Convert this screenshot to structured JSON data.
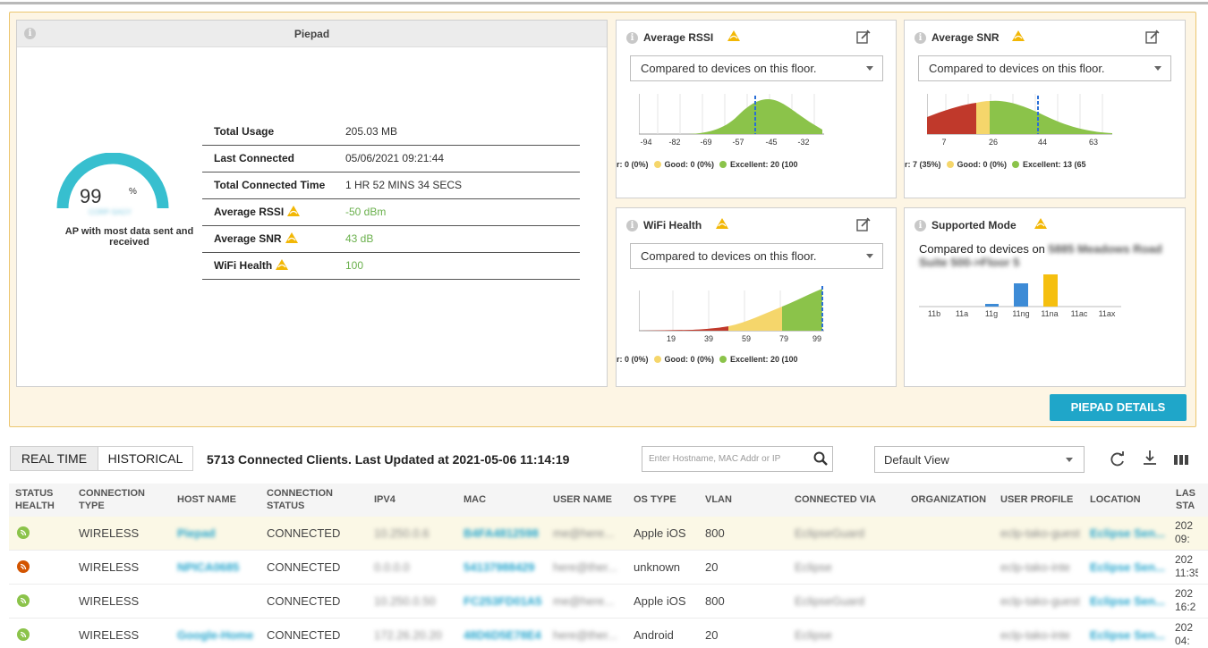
{
  "ap_card": {
    "title": "Piepad",
    "gauge_value": "99",
    "gauge_unit": "%",
    "gauge_fill": 0.99,
    "gauge_sub": "CORP-SAGY",
    "gauge_caption": "AP with most data sent and received",
    "rows": [
      {
        "label": "Total Usage",
        "value": "205.03 MB",
        "warn": false,
        "good": false
      },
      {
        "label": "Last Connected",
        "value": "05/06/2021 09:21:44",
        "warn": false,
        "good": false
      },
      {
        "label": "Total Connected Time",
        "value": "1 HR 52 MINS 34 SECS",
        "warn": false,
        "good": false
      },
      {
        "label": "Average RSSI",
        "value": "-50 dBm",
        "warn": true,
        "good": true
      },
      {
        "label": "Average SNR",
        "value": "43 dB",
        "warn": true,
        "good": true
      },
      {
        "label": "WiFi Health",
        "value": "100",
        "warn": true,
        "good": true
      }
    ]
  },
  "rssi_card": {
    "title": "Average RSSI",
    "dropdown": "Compared to devices on this floor.",
    "ticks": [
      "-94",
      "-82",
      "-69",
      "-57",
      "-45",
      "-32"
    ],
    "legend_poor": "r: 0 (0%)",
    "legend_good": "Good: 0 (0%)",
    "legend_excellent": "Excellent: 20 (100"
  },
  "snr_card": {
    "title": "Average SNR",
    "dropdown": "Compared to devices on this floor.",
    "ticks": [
      "7",
      "26",
      "44",
      "63"
    ],
    "legend_poor": "r: 7 (35%)",
    "legend_good": "Good: 0 (0%)",
    "legend_excellent": "Excellent: 13 (65"
  },
  "health_card": {
    "title": "WiFi Health",
    "dropdown": "Compared to devices on this floor.",
    "ticks": [
      "19",
      "39",
      "59",
      "79",
      "99"
    ],
    "legend_poor": "r: 0 (0%)",
    "legend_good": "Good: 0 (0%)",
    "legend_excellent": "Excellent: 20 (100"
  },
  "mode_card": {
    "title": "Supported Mode",
    "compare_prefix": "Compared to devices on",
    "compare_location": "5885 Meadows Road Suite 500->Floor 5",
    "modes": [
      "11b",
      "11a",
      "11g",
      "11ng",
      "11na",
      "11ac",
      "11ax"
    ]
  },
  "details_button": "PIEPAD DETAILS",
  "toolbar": {
    "tab_realtime": "REAL TIME",
    "tab_historical": "HISTORICAL",
    "summary": "5713 Connected Clients. Last Updated at 2021-05-06 11:14:19",
    "search_placeholder": "Enter Hostname, MAC Addr or IP",
    "view_select": "Default View"
  },
  "table": {
    "headers": {
      "status_health": "STATUS HEALTH",
      "connection_type": "CONNECTION TYPE",
      "host_name": "HOST NAME",
      "connection_status": "CONNECTION STATUS",
      "ipv4": "IPV4",
      "mac": "MAC",
      "user_name": "USER NAME",
      "os_type": "OS TYPE",
      "vlan": "VLAN",
      "connected_via": "CONNECTED VIA",
      "organization": "ORGANIZATION",
      "user_profile": "USER PROFILE",
      "location": "LOCATION",
      "last_state": "LAS STA"
    },
    "rows": [
      {
        "health": "good",
        "type": "WIRELESS",
        "host": "Piepad",
        "status": "CONNECTED",
        "ipv4": "10.250.0.6",
        "mac": "B4FA4812598",
        "user": "me@here...",
        "os": "Apple iOS",
        "vlan": "800",
        "via": "EclipseGuard",
        "profile": "eclp-tako-guest",
        "location": "Eclipse Sen...",
        "last": "202 09:"
      },
      {
        "health": "bad",
        "type": "WIRELESS",
        "host": "NPICA0685",
        "status": "CONNECTED",
        "ipv4": "0.0.0.0",
        "mac": "54137988429",
        "user": "here@ther...",
        "os": "unknown",
        "vlan": "20",
        "via": "Eclipse",
        "profile": "eclp-tako-inte",
        "location": "Eclipse Sen...",
        "last": "202 11:35"
      },
      {
        "health": "good",
        "type": "WIRELESS",
        "host": "",
        "status": "CONNECTED",
        "ipv4": "10.250.0.50",
        "mac": "FC253FD01A5",
        "user": "me@here...",
        "os": "Apple iOS",
        "vlan": "800",
        "via": "EclipseGuard",
        "profile": "eclp-tako-guest",
        "location": "Eclipse Sen...",
        "last": "202 16:2"
      },
      {
        "health": "good",
        "type": "WIRELESS",
        "host": "Google-Home",
        "status": "CONNECTED",
        "ipv4": "172.26.20.20",
        "mac": "48D6D5E78E4",
        "user": "here@ther...",
        "os": "Android",
        "vlan": "20",
        "via": "Eclipse",
        "profile": "eclp-tako-inte",
        "location": "Eclipse Sen...",
        "last": "202 04:"
      }
    ]
  },
  "colors": {
    "accent": "#1fa6c9",
    "good": "#8bc34a",
    "fair": "#f5d66b",
    "poor": "#c0392b",
    "bar_blue": "#3d8bd6",
    "bar_yellow": "#f5bf0f",
    "marker": "#2a6fd6"
  }
}
